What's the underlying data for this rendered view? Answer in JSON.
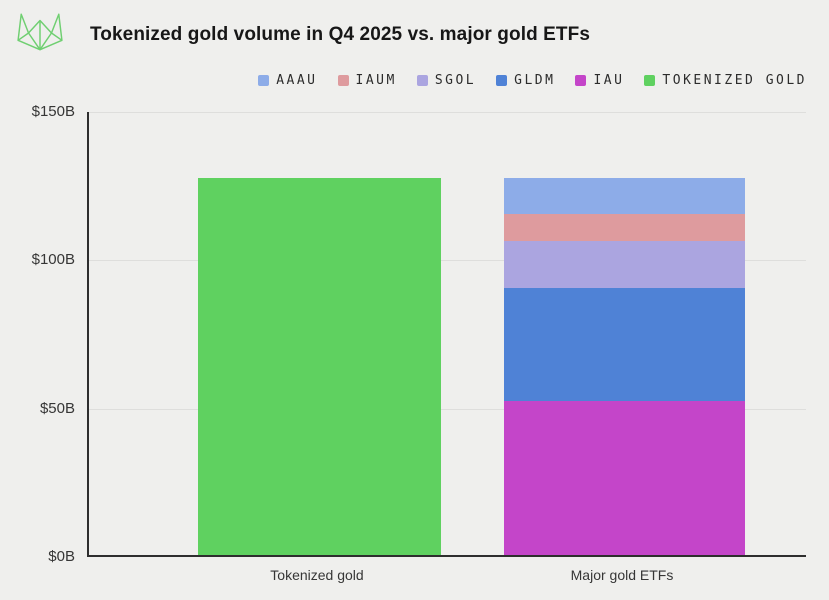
{
  "page": {
    "background_color": "#EFEFED",
    "axis_color": "#2e2e2e",
    "grid_color": "#DEDEDC",
    "logo_color": "#6FCF71"
  },
  "header": {
    "title": "Tokenized gold volume in Q4 2025 vs. major gold ETFs"
  },
  "chart_data": {
    "type": "bar",
    "stacked": true,
    "title": "Tokenized gold volume in Q4 2025 vs. major gold ETFs",
    "unit": "USD billions",
    "categories": [
      "Tokenized gold",
      "Major gold ETFs"
    ],
    "ylim": [
      0,
      150
    ],
    "yticks": [
      {
        "label": "$150B",
        "value": 150
      },
      {
        "label": "$100B",
        "value": 100
      },
      {
        "label": "$50B",
        "value": 50
      },
      {
        "label": "$0B",
        "value": 0
      }
    ],
    "grid": "horizontal",
    "legend_position": "top-right",
    "series": [
      {
        "name": "AAAU",
        "color": "#8DACE8",
        "values": [
          0,
          12
        ]
      },
      {
        "name": "IAUM",
        "color": "#DE9B9E",
        "values": [
          0,
          9
        ]
      },
      {
        "name": "SGOL",
        "color": "#ABA5E0",
        "values": [
          0,
          16
        ]
      },
      {
        "name": "GLDM",
        "color": "#4F82D6",
        "values": [
          0,
          38
        ]
      },
      {
        "name": "IAU",
        "color": "#C445C9",
        "values": [
          0,
          52
        ]
      },
      {
        "name": "TOKENIZED GOLD",
        "color": "#5FD160",
        "values": [
          127,
          0
        ]
      }
    ]
  }
}
